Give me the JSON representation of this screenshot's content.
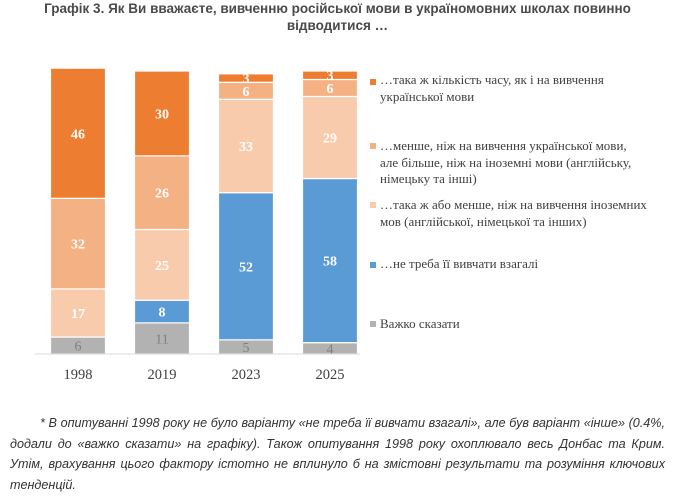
{
  "chart_data": {
    "type": "bar",
    "stacked": true,
    "title": "Графік 3. Як Ви вважаєте, вивченню російської мови в україномовних школах повинно відводитися …",
    "categories": [
      "1998",
      "2019",
      "2023",
      "2025"
    ],
    "series": [
      {
        "name": "Важко сказати",
        "color": "#b2b2b2",
        "label_color": "#7f7f7f",
        "values": [
          6,
          11,
          5,
          4
        ]
      },
      {
        "name": "…не треба її вивчати взагалі",
        "color": "#5b9bd5",
        "label_color": "#ffffff",
        "values": [
          null,
          8,
          52,
          58
        ]
      },
      {
        "name": "…така ж або менше, ніж на вивчення іноземних мов (англійської, німецької та інших)",
        "color": "#f8cbad",
        "label_color": "#ffffff",
        "values": [
          17,
          25,
          33,
          29
        ]
      },
      {
        "name": "…менше, ніж на вивчення української мови, але більше, ніж на іноземні мови (англійську, німецьку та інші)",
        "color": "#f4b183",
        "label_color": "#ffffff",
        "values": [
          32,
          26,
          6,
          6
        ]
      },
      {
        "name": "…така ж кількість часу, як і на вивчення української мови",
        "color": "#ed7d31",
        "label_color": "#ffffff",
        "values": [
          46,
          30,
          3,
          3
        ]
      }
    ],
    "legend_order": [
      4,
      3,
      2,
      1,
      0
    ],
    "legend_position": "right",
    "ylim": [
      0,
      100
    ],
    "grid": false
  },
  "footnote": "* В опитуванні 1998 року не було варіанту «не треба її вивчати взагалі», але був варіант «інше» (0.4%, додали до «важко сказати» на графіку). Також опитування 1998 року охоплювало весь Донбас та Крим. Утім, врахування цього фактору істотно не вплинуло б на змістовні результати та розуміння ключових тенденцій."
}
